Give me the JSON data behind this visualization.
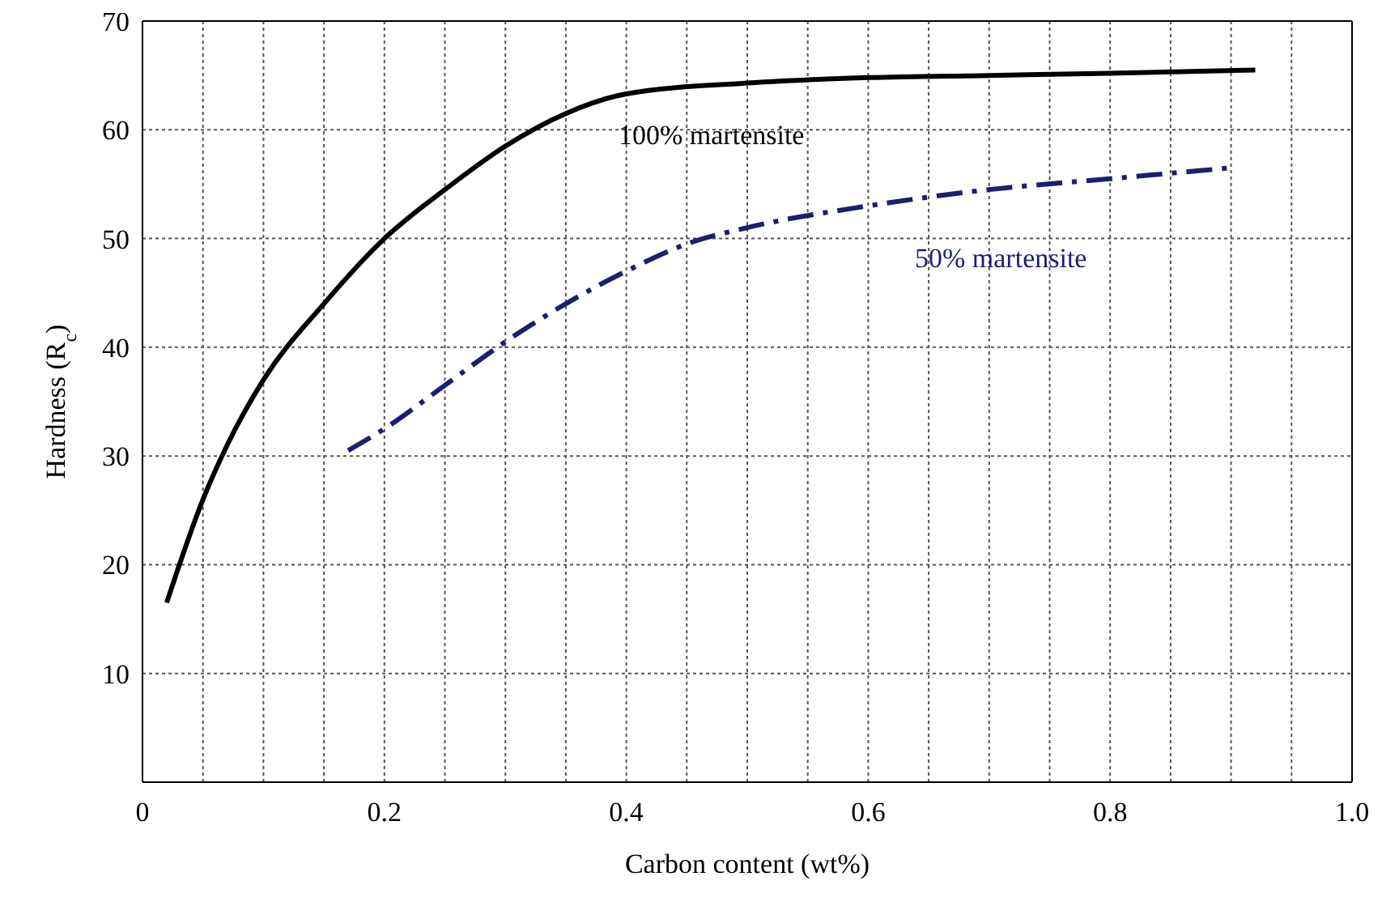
{
  "chart_data": {
    "type": "line",
    "xlabel": "Carbon content (wt%)",
    "ylabel": "Hardness (R$_{c}$)",
    "xlim": [
      0,
      1.0
    ],
    "ylim": [
      0,
      70
    ],
    "xticks": [
      0,
      {
        "value": 0.05,
        "label": null
      },
      {
        "value": 0.1,
        "label": null
      },
      {
        "value": 0.15,
        "label": null
      },
      {
        "value": 0.2,
        "label": "0.2"
      },
      {
        "value": 0.25,
        "label": null
      },
      {
        "value": 0.3,
        "label": null
      },
      {
        "value": 0.35,
        "label": null
      },
      {
        "value": 0.4,
        "label": "0.4"
      },
      {
        "value": 0.45,
        "label": null
      },
      {
        "value": 0.5,
        "label": null
      },
      {
        "value": 0.55,
        "label": null
      },
      {
        "value": 0.6,
        "label": "0.6"
      },
      {
        "value": 0.65,
        "label": null
      },
      {
        "value": 0.7,
        "label": null
      },
      {
        "value": 0.75,
        "label": null
      },
      {
        "value": 0.8,
        "label": "0.8"
      },
      {
        "value": 0.85,
        "label": null
      },
      {
        "value": 0.9,
        "label": null
      },
      {
        "value": 0.95,
        "label": null
      },
      {
        "value": 1.0,
        "label": "1.0"
      }
    ],
    "yticks": [
      {
        "value": 0,
        "label": null
      },
      10,
      20,
      30,
      40,
      50,
      60,
      70
    ],
    "grid": true,
    "series": [
      {
        "color": "#000000",
        "line_style": "solid",
        "x": [
          0.02,
          0.05,
          0.07,
          0.1,
          0.15,
          0.2,
          0.25,
          0.3,
          0.35,
          0.4,
          0.5,
          0.6,
          0.7,
          0.8,
          0.92
        ],
        "values": [
          16.5,
          26,
          31,
          37,
          44,
          50,
          54.5,
          58.5,
          61.5,
          63.3,
          64.3,
          64.8,
          65,
          65.2,
          65.5
        ]
      },
      {
        "color": "#1a1f6e",
        "line_style": "dashed",
        "x": [
          0.17,
          0.2,
          0.25,
          0.3,
          0.35,
          0.4,
          0.45,
          0.5,
          0.6,
          0.7,
          0.8,
          0.9
        ],
        "values": [
          30.5,
          32.5,
          36.5,
          40.5,
          44,
          47,
          49.5,
          51,
          53,
          54.5,
          55.5,
          56.5
        ]
      }
    ],
    "annotations": [
      "100% martensite",
      "50% martensite"
    ]
  }
}
